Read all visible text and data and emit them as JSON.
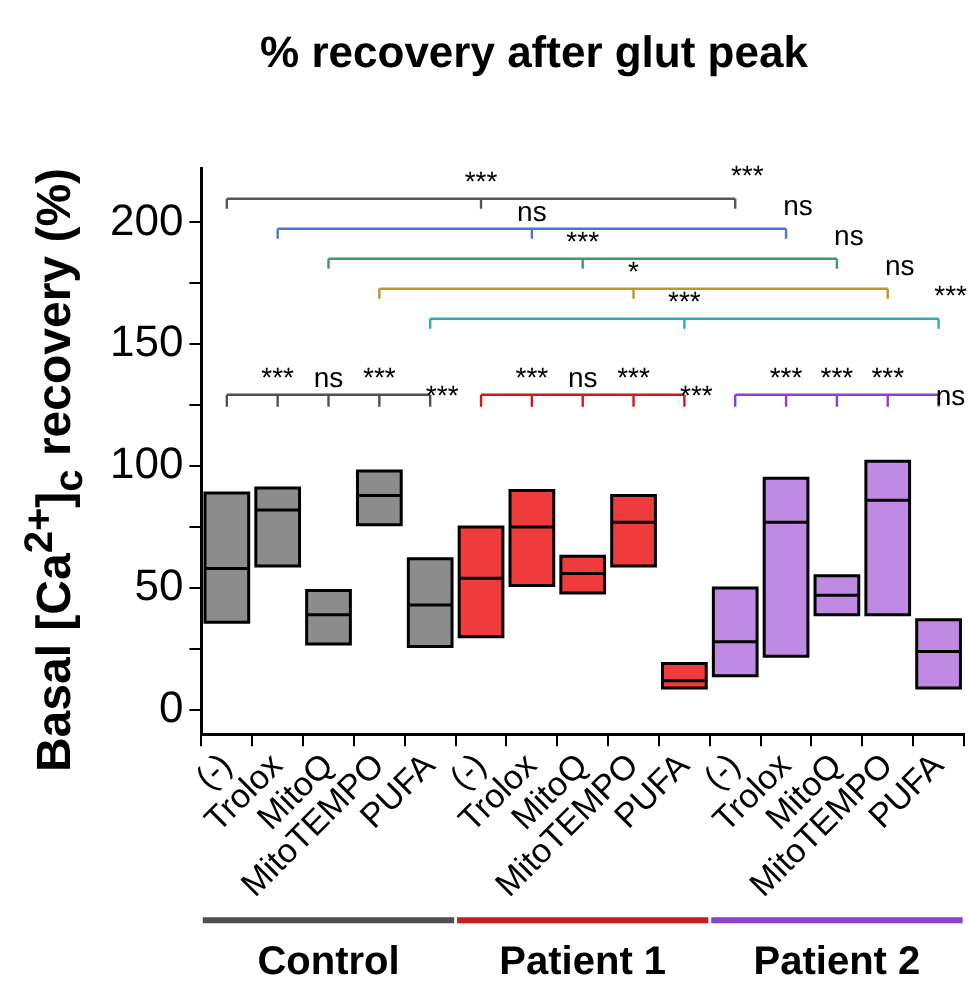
{
  "chart_data": {
    "type": "box",
    "title": "% recovery after glut peak",
    "ylabel": "Basal [Ca$^{2+}$]$_{c}$ recovery (%)",
    "categories": [
      "(-)",
      "Trolox",
      "MitoQ",
      "MitoTEMPO",
      "PUFA",
      "(-)",
      "Trolox",
      "MitoQ",
      "MitoTEMPO",
      "PUFA",
      "(-)",
      "Trolox",
      "MitoQ",
      "MitoTEMPO",
      "PUFA"
    ],
    "colors": [
      "#8c8c8c",
      "#8c8c8c",
      "#8c8c8c",
      "#8c8c8c",
      "#8c8c8c",
      "#ef3b3b",
      "#ef3b3b",
      "#ef3b3b",
      "#ef3b3b",
      "#ef3b3b",
      "#c08ae4",
      "#c08ae4",
      "#c08ae4",
      "#c08ae4",
      "#c08ae4"
    ],
    "boxes": [
      {
        "low": 36,
        "q1": 36,
        "median": 58,
        "q3": 89,
        "high": 89
      },
      {
        "low": 59,
        "q1": 59,
        "median": 82,
        "q3": 91,
        "high": 91
      },
      {
        "low": 27,
        "q1": 27,
        "median": 39,
        "q3": 49,
        "high": 49
      },
      {
        "low": 76,
        "q1": 76,
        "median": 88,
        "q3": 98,
        "high": 98
      },
      {
        "low": 26,
        "q1": 26,
        "median": 43,
        "q3": 62,
        "high": 62
      },
      {
        "low": 30,
        "q1": 30,
        "median": 54,
        "q3": 75,
        "high": 75
      },
      {
        "low": 51,
        "q1": 51,
        "median": 75,
        "q3": 90,
        "high": 90
      },
      {
        "low": 48,
        "q1": 48,
        "median": 56,
        "q3": 63,
        "high": 63
      },
      {
        "low": 59,
        "q1": 59,
        "median": 77,
        "q3": 88,
        "high": 88
      },
      {
        "low": 9,
        "q1": 9,
        "median": 12,
        "q3": 19,
        "high": 19
      },
      {
        "low": 14,
        "q1": 14,
        "median": 28,
        "q3": 50,
        "high": 50
      },
      {
        "low": 22,
        "q1": 22,
        "median": 77,
        "q3": 95,
        "high": 95
      },
      {
        "low": 39,
        "q1": 39,
        "median": 47,
        "q3": 55,
        "high": 55
      },
      {
        "low": 39,
        "q1": 39,
        "median": 86,
        "q3": 102,
        "high": 102
      },
      {
        "low": 9,
        "q1": 9,
        "median": 24,
        "q3": 37,
        "high": 37
      }
    ],
    "ylim": [
      -10,
      222
    ],
    "yticks": [
      0,
      {
        "value": 25,
        "label": null
      },
      50,
      {
        "value": 75,
        "label": null
      },
      100,
      {
        "value": 125,
        "label": null
      },
      150,
      {
        "value": 175,
        "label": null
      },
      200
    ],
    "annotations": [
      "***",
      "***",
      "ns",
      "ns",
      "***",
      "ns",
      "*",
      "ns",
      "***",
      "***",
      "***",
      "ns",
      "***",
      "***",
      "***",
      "ns",
      "***",
      "***",
      "***",
      "***",
      "***",
      "ns",
      "Control",
      "Patient 1",
      "Patient 2"
    ]
  }
}
